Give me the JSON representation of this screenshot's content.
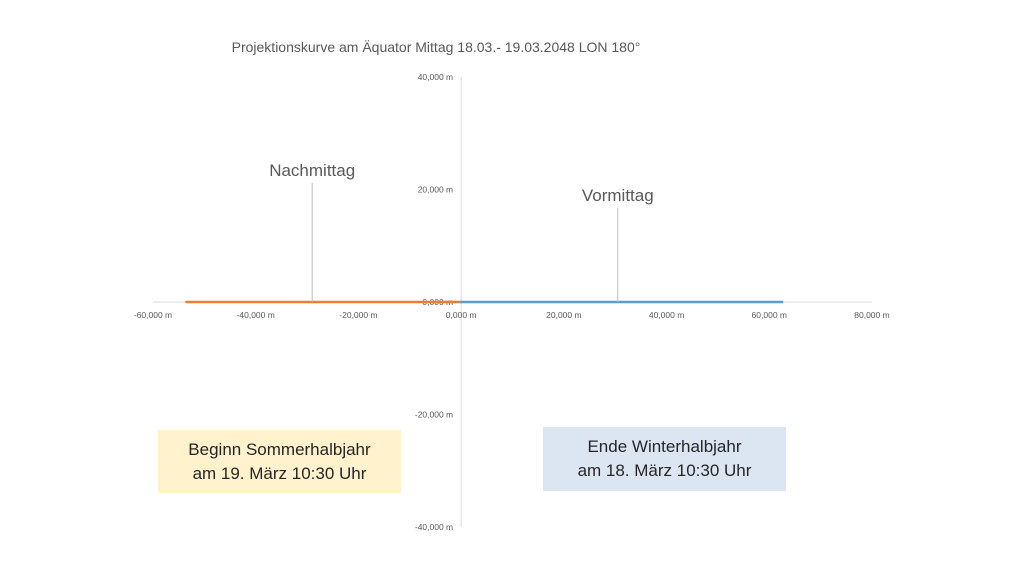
{
  "chart_data": {
    "type": "line",
    "title": "Projektionskurve am Äquator Mittag 18.03.- 19.03.2048 LON 180°",
    "xlim": [
      -60000,
      80000
    ],
    "ylim": [
      -40000,
      40000
    ],
    "x_ticks": [
      "-60,000 m",
      "-40,000 m",
      "-20,000 m",
      "0,000 m",
      "20,000 m",
      "40,000 m",
      "60,000 m",
      "80,000 m"
    ],
    "y_ticks": [
      "40,000 m",
      "20,000 m",
      "0,000 m",
      "-20,000 m",
      "-40,000 m"
    ],
    "series": [
      {
        "color": "#ed7d31",
        "x": [
          -53500,
          -40000,
          -20000,
          0
        ],
        "y": [
          0,
          0,
          0,
          0
        ]
      },
      {
        "color": "#5b9bd5",
        "x": [
          0,
          20000,
          40000,
          62500
        ],
        "y": [
          0,
          0,
          0,
          0
        ]
      }
    ],
    "annotations": [
      {
        "text": "Nachmittag",
        "x": -29000,
        "y": 0
      },
      {
        "text": "Vormittag",
        "x": 30500,
        "y": 0
      }
    ],
    "grid": false
  },
  "boxes": {
    "left": {
      "text": "Beginn Sommerhalbjahr\nam 19. März 10:30 Uhr",
      "color": "#fff2cc"
    },
    "right": {
      "text": "Ende Winterhalbjahr\nam 18. März 10:30 Uhr",
      "color": "#dce6f2"
    }
  }
}
